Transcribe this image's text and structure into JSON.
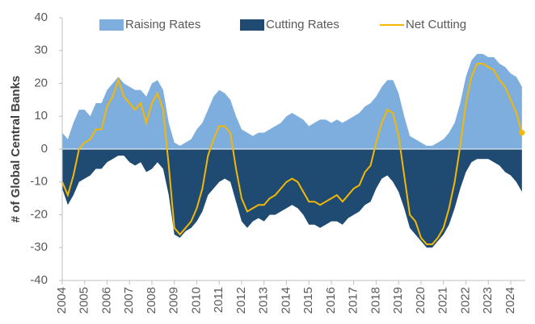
{
  "chart_data": {
    "type": "area",
    "ylabel": "# of Global Central Banks",
    "x": [
      2004,
      2004.25,
      2004.5,
      2004.75,
      2005,
      2005.25,
      2005.5,
      2005.75,
      2006,
      2006.25,
      2006.5,
      2006.75,
      2007,
      2007.25,
      2007.5,
      2007.75,
      2008,
      2008.25,
      2008.5,
      2008.75,
      2009,
      2009.25,
      2009.5,
      2009.75,
      2010,
      2010.25,
      2010.5,
      2010.75,
      2011,
      2011.25,
      2011.5,
      2011.75,
      2012,
      2012.25,
      2012.5,
      2012.75,
      2013,
      2013.25,
      2013.5,
      2013.75,
      2014,
      2014.25,
      2014.5,
      2014.75,
      2015,
      2015.25,
      2015.5,
      2015.75,
      2016,
      2016.25,
      2016.5,
      2016.75,
      2017,
      2017.25,
      2017.5,
      2017.75,
      2018,
      2018.25,
      2018.5,
      2018.75,
      2019,
      2019.25,
      2019.5,
      2019.75,
      2020,
      2020.25,
      2020.5,
      2020.75,
      2021,
      2021.25,
      2021.5,
      2021.75,
      2022,
      2022.25,
      2022.5,
      2022.75,
      2023,
      2023.25,
      2023.5,
      2023.75,
      2024,
      2024.25,
      2024.5
    ],
    "series": [
      {
        "name": "Raising Rates",
        "color": "#7eaedd",
        "kind": "area",
        "values": [
          5,
          3,
          8,
          12,
          12,
          10,
          14,
          14,
          18,
          20,
          22,
          20,
          19,
          18,
          18,
          16,
          20,
          21,
          18,
          8,
          2,
          1,
          2,
          3,
          6,
          8,
          12,
          16,
          18,
          17,
          15,
          10,
          6,
          5,
          4,
          5,
          5,
          6,
          7,
          8,
          10,
          11,
          10,
          9,
          7,
          8,
          9,
          9,
          8,
          9,
          8,
          9,
          10,
          11,
          13,
          14,
          16,
          19,
          21,
          21,
          17,
          10,
          4,
          3,
          2,
          1,
          1,
          2,
          3,
          5,
          8,
          14,
          22,
          27,
          29,
          29,
          28,
          28,
          26,
          25,
          23,
          22,
          19
        ]
      },
      {
        "name": "Cutting Rates",
        "color": "#1f4b73",
        "kind": "area",
        "values": [
          -12,
          -17,
          -14,
          -10,
          -9,
          -8,
          -6,
          -6,
          -4,
          -3,
          -2,
          -2,
          -4,
          -5,
          -4,
          -7,
          -6,
          -4,
          -6,
          -14,
          -26,
          -27,
          -25,
          -24,
          -22,
          -19,
          -14,
          -12,
          -10,
          -9,
          -10,
          -16,
          -22,
          -24,
          -22,
          -21,
          -22,
          -20,
          -20,
          -19,
          -18,
          -17,
          -18,
          -20,
          -23,
          -23,
          -24,
          -23,
          -22,
          -22,
          -23,
          -21,
          -20,
          -19,
          -17,
          -16,
          -12,
          -9,
          -8,
          -10,
          -13,
          -18,
          -24,
          -26,
          -28,
          -30,
          -30,
          -28,
          -26,
          -23,
          -18,
          -12,
          -7,
          -4,
          -3,
          -3,
          -3,
          -4,
          -5,
          -7,
          -8,
          -10,
          -13
        ]
      },
      {
        "name": "Net Cutting",
        "color": "#f5b800",
        "kind": "line",
        "values": [
          -10,
          -14,
          -8,
          0,
          2,
          3,
          6,
          6,
          13,
          16,
          21,
          16,
          14,
          12,
          14,
          8,
          14,
          17,
          12,
          -5,
          -24,
          -26,
          -24,
          -22,
          -18,
          -12,
          -2,
          3,
          7,
          7,
          5,
          -6,
          -15,
          -19,
          -18,
          -17,
          -17,
          -15,
          -14,
          -12,
          -10,
          -9,
          -10,
          -13,
          -16,
          -16,
          -17,
          -16,
          -15,
          -14,
          -16,
          -14,
          -12,
          -11,
          -7,
          -5,
          2,
          8,
          12,
          11,
          4,
          -8,
          -20,
          -22,
          -27,
          -29,
          -29,
          -27,
          -24,
          -18,
          -10,
          1,
          14,
          22,
          26,
          26,
          25,
          24,
          21,
          19,
          15,
          11,
          5
        ]
      }
    ],
    "xlim": [
      2004,
      2024.65
    ],
    "xticks": [
      2004,
      2005,
      2006,
      2007,
      2008,
      2009,
      2010,
      2011,
      2012,
      2013,
      2014,
      2015,
      2016,
      2017,
      2018,
      2019,
      2020,
      2021,
      2022,
      2023,
      2024
    ],
    "ylim": [
      -40,
      40
    ],
    "yticks": [
      -40,
      -30,
      -20,
      -10,
      0,
      10,
      20,
      30,
      40
    ],
    "grid": false,
    "legend": "top"
  }
}
